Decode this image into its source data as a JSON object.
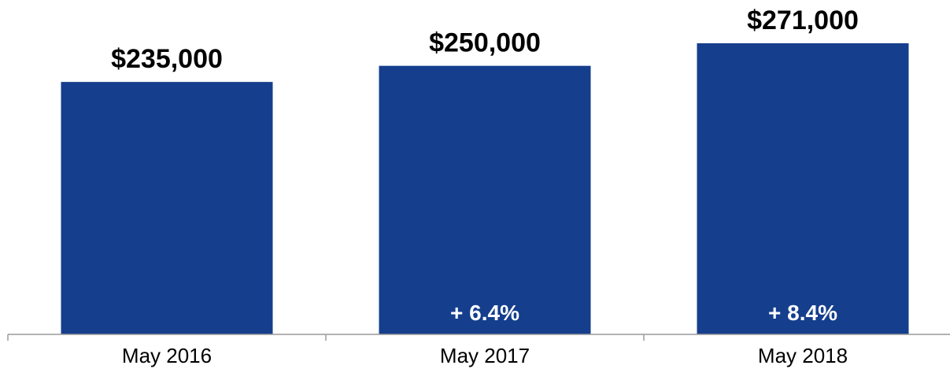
{
  "chart_data": {
    "type": "bar",
    "categories": [
      "May 2016",
      "May 2017",
      "May 2018"
    ],
    "values": [
      235000,
      250000,
      271000
    ],
    "value_labels": [
      "$235,000",
      "$250,000",
      "$271,000"
    ],
    "change_labels": [
      "",
      "+ 6.4%",
      "+ 8.4%"
    ],
    "ylim": [
      0,
      271000
    ],
    "grid": false,
    "bar_color": "#153e8c",
    "change_label_color": "#ffffff"
  }
}
